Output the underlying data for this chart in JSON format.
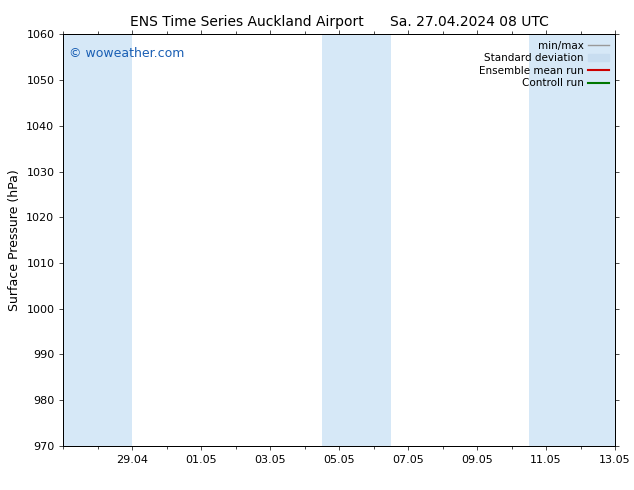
{
  "title": "ENS Time Series Auckland Airport      Sa. 27.04.2024 08 UTC",
  "ylabel": "Surface Pressure (hPa)",
  "ylim": [
    970,
    1060
  ],
  "yticks": [
    970,
    980,
    990,
    1000,
    1010,
    1020,
    1030,
    1040,
    1050,
    1060
  ],
  "xlim": [
    0,
    16
  ],
  "xtick_positions": [
    2,
    4,
    6,
    8,
    10,
    12,
    14,
    16
  ],
  "xtick_labels": [
    "29.04",
    "01.05",
    "03.05",
    "05.05",
    "07.05",
    "09.05",
    "11.05",
    "13.05"
  ],
  "background_color": "#ffffff",
  "plot_bg_color": "#ffffff",
  "shaded_band_color": "#d6e8f7",
  "shaded_intervals": [
    [
      0,
      2
    ],
    [
      7.5,
      9.5
    ],
    [
      13.5,
      16
    ]
  ],
  "watermark_text": "© woweather.com",
  "watermark_color": "#1a5fb4",
  "legend_entries": [
    {
      "label": "min/max",
      "color": "#999999",
      "lw": 1.0,
      "type": "line"
    },
    {
      "label": "Standard deviation",
      "color": "#c8ddf0",
      "lw": 6,
      "type": "patch"
    },
    {
      "label": "Ensemble mean run",
      "color": "#cc0000",
      "lw": 1.5,
      "type": "line"
    },
    {
      "label": "Controll run",
      "color": "#007700",
      "lw": 1.5,
      "type": "line"
    }
  ],
  "title_fontsize": 10,
  "axis_label_fontsize": 9,
  "tick_fontsize": 8,
  "legend_fontsize": 7.5,
  "watermark_fontsize": 9
}
